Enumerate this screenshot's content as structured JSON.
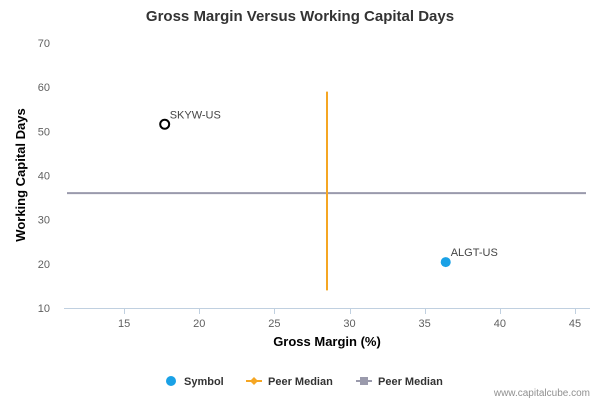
{
  "chart_data": {
    "type": "scatter",
    "title": "Gross Margin Versus Working Capital Days",
    "xlabel": "Gross Margin (%)",
    "ylabel": "Working Capital Days",
    "xlim": [
      11,
      46
    ],
    "ylim": [
      10,
      70
    ],
    "x_ticks": [
      15,
      20,
      25,
      30,
      35,
      40,
      45
    ],
    "y_ticks": [
      10,
      20,
      30,
      40,
      50,
      60,
      70
    ],
    "grid": false,
    "legend_position": "bottom",
    "series": [
      {
        "name": "Symbol",
        "points": [
          {
            "label": "SKYW-US",
            "x": 17.7,
            "y": 51.6,
            "style": "hollow",
            "color": "#000000"
          },
          {
            "label": "ALGT-US",
            "x": 36.4,
            "y": 20.4,
            "style": "filled",
            "color": "#1aa1e6"
          }
        ]
      },
      {
        "name": "Peer Median",
        "orientation": "vertical",
        "x": 28.5,
        "y_range": [
          14,
          59
        ],
        "color": "#f5a623"
      },
      {
        "name": "Peer Median",
        "orientation": "horizontal",
        "y": 36,
        "color": "#9a9aac"
      }
    ]
  },
  "credit": "www.capitalcube.com"
}
